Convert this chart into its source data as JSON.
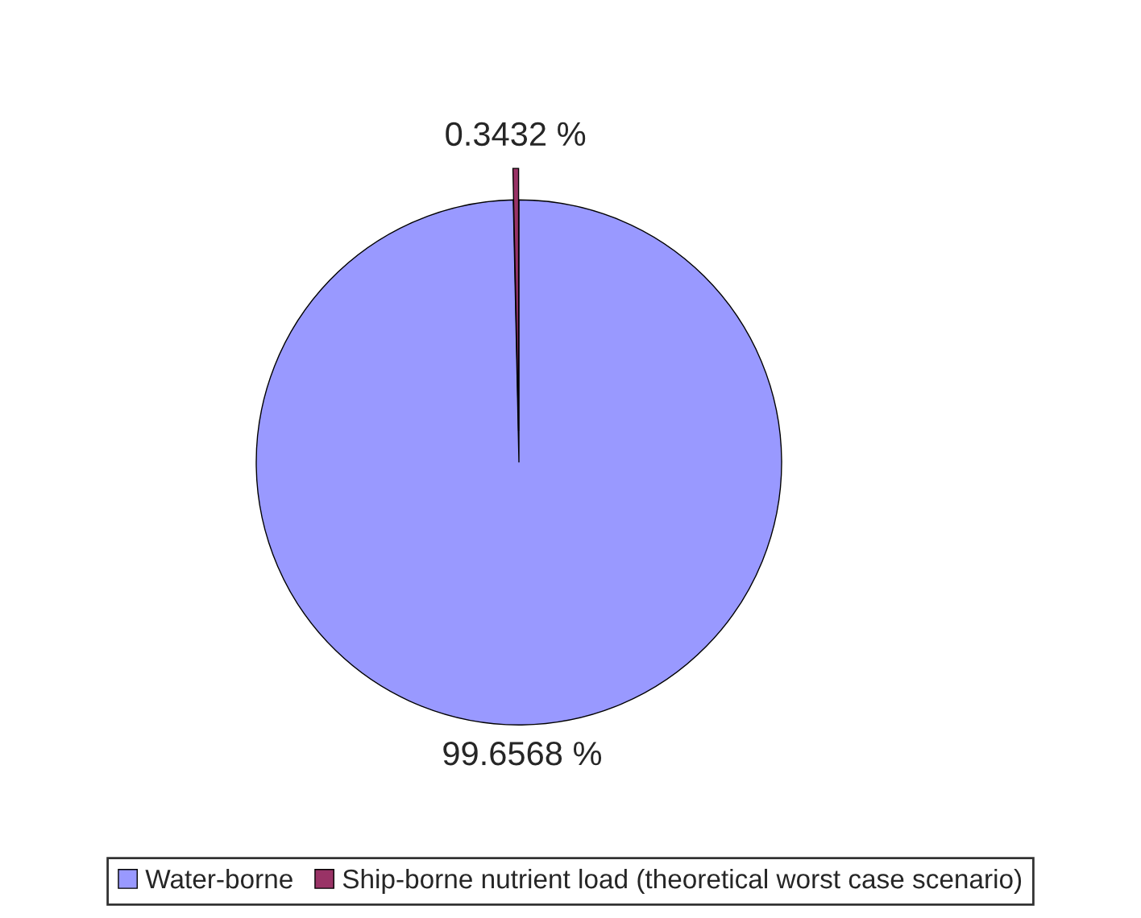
{
  "chart_data": {
    "type": "pie",
    "categories": [
      "Water-borne",
      "Ship-borne nutrient load (theoretical worst case scenario)"
    ],
    "values": [
      99.6568,
      0.3432
    ],
    "colors": [
      "#9999ff",
      "#993366"
    ],
    "value_labels": [
      "99.6568 %",
      "0.3432 %"
    ],
    "legend": "bottom"
  }
}
